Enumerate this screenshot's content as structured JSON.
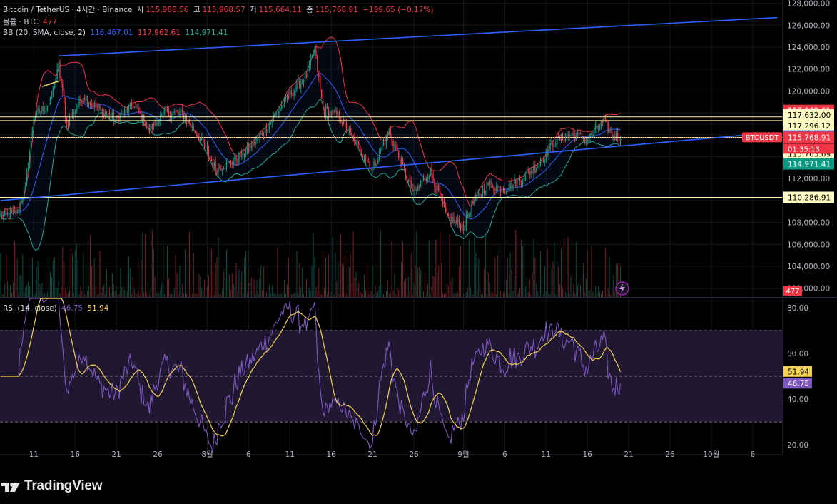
{
  "legend": {
    "symbol": "Bitcoin / TetherUS · 4시간 · Binance",
    "open_label": "시",
    "open": "115,968.56",
    "high_label": "고",
    "high": "115,968.57",
    "low_label": "저",
    "low": "115,664.11",
    "close_label": "종",
    "close": "115,768.91",
    "change": "−199.65 (−0.17%)",
    "volume_label": "볼륨 · BTC",
    "volume_value": "477",
    "bb_label": "BB (20, SMA, close, 2)",
    "bb_basis": "116,467.01",
    "bb_upper": "117,962.61",
    "bb_lower": "114,971.41",
    "rsi_label": "RSI (14, close)",
    "rsi_value": "46.75",
    "rsi_ma": "51.94"
  },
  "brand": "TradingView",
  "symbol_tag": "BTCUSDT",
  "countdown": "01:35:13",
  "colors": {
    "background": "#000000",
    "up": "#089981",
    "down": "#f23645",
    "bb_basis": "#2962ff",
    "bb_upper": "#f23645",
    "bb_lower": "#22ab94",
    "trendline": "#2962ff",
    "hline": "#fff59d",
    "rsi": "#7e57c2",
    "rsi_ma": "#f7d154",
    "rsi_band": "#1f1830"
  },
  "chart_data": [
    {
      "type": "candlestick",
      "name": "price",
      "x_tick_labels": [
        "11",
        "16",
        "21",
        "26",
        "8월",
        "6",
        "11",
        "16",
        "21",
        "26",
        "9월",
        "6",
        "11",
        "16",
        "21",
        "26",
        "10월",
        "6"
      ],
      "y_tick_labels": [
        "128,000.00",
        "126,000.00",
        "124,000.00",
        "122,000.00",
        "120,000.00",
        "118,000.00",
        "116,000.00",
        "114,000.00",
        "112,000.00",
        "110,000.00",
        "108,000.00",
        "106,000.00",
        "104,000.00",
        "102,000.00"
      ],
      "ylim": [
        101200,
        128300
      ],
      "x_range_days": [
        "2025-07-07",
        "2025-10-10"
      ],
      "anchors": [
        [
          "2025-07-07",
          108600
        ],
        [
          "2025-07-09",
          108900
        ],
        [
          "2025-07-10",
          111300
        ],
        [
          "2025-07-11",
          117600
        ],
        [
          "2025-07-13",
          119000
        ],
        [
          "2025-07-14",
          122300
        ],
        [
          "2025-07-15",
          117000
        ],
        [
          "2025-07-17",
          119600
        ],
        [
          "2025-07-19",
          118200
        ],
        [
          "2025-07-21",
          117400
        ],
        [
          "2025-07-23",
          118700
        ],
        [
          "2025-07-25",
          116500
        ],
        [
          "2025-07-27",
          118100
        ],
        [
          "2025-07-29",
          117900
        ],
        [
          "2025-07-31",
          115800
        ],
        [
          "2025-08-02",
          112900
        ],
        [
          "2025-08-04",
          113500
        ],
        [
          "2025-08-06",
          114700
        ],
        [
          "2025-08-08",
          116400
        ],
        [
          "2025-08-11",
          119700
        ],
        [
          "2025-08-13",
          121400
        ],
        [
          "2025-08-14",
          123700
        ],
        [
          "2025-08-15",
          118300
        ],
        [
          "2025-08-17",
          117700
        ],
        [
          "2025-08-19",
          115200
        ],
        [
          "2025-08-21",
          112900
        ],
        [
          "2025-08-23",
          116300
        ],
        [
          "2025-08-25",
          112300
        ],
        [
          "2025-08-26",
          110600
        ],
        [
          "2025-08-28",
          112700
        ],
        [
          "2025-08-30",
          108500
        ],
        [
          "2025-09-01",
          107600
        ],
        [
          "2025-09-02",
          109600
        ],
        [
          "2025-09-04",
          111500
        ],
        [
          "2025-09-06",
          111000
        ],
        [
          "2025-09-08",
          112000
        ],
        [
          "2025-09-10",
          113200
        ],
        [
          "2025-09-12",
          115400
        ],
        [
          "2025-09-14",
          116000
        ],
        [
          "2025-09-16",
          115600
        ],
        [
          "2025-09-17",
          116400
        ],
        [
          "2025-09-18",
          117200
        ],
        [
          "2025-09-19",
          115900
        ],
        [
          "2025-09-20",
          115768.91
        ]
      ],
      "bollinger": {
        "period": 20,
        "stddev": 2,
        "basis": 116467.01,
        "upper": 117962.61,
        "lower": 114971.41
      },
      "price_labels": [
        {
          "value": 117962.61,
          "text": "117,962.61",
          "color": "#f23645",
          "text_color": "#ffffff"
        },
        {
          "value": 117632.0,
          "text": "117,632.00",
          "color": "#fff9c4",
          "text_color": "#000000"
        },
        {
          "value": 117296.12,
          "text": "117,296.12",
          "color": "#fff9c4",
          "text_color": "#000000"
        },
        {
          "value": 116467.01,
          "text": "116,467.01",
          "color": "#2962ff",
          "text_color": "#ffffff"
        },
        {
          "value": 115768.91,
          "text": "115,768.91",
          "color": "#f23645",
          "text_color": "#ffffff"
        },
        {
          "value": 115763.69,
          "text": "115,763.69",
          "color": "#fff9c4",
          "text_color": "#000000"
        },
        {
          "value": 114971.41,
          "text": "114,971.41",
          "color": "#089981",
          "text_color": "#ffffff"
        },
        {
          "value": 110286.91,
          "text": "110,286.91",
          "color": "#fff9c4",
          "text_color": "#000000"
        }
      ],
      "horizontal_lines": [
        117632.0,
        117296.12,
        115763.69,
        110286.91
      ],
      "trendlines": [
        {
          "points": [
            [
              "2025-07-14",
              123200
            ],
            [
              "2025-10-09",
              126700
            ]
          ]
        },
        {
          "points": [
            [
              "2025-07-07",
              110000
            ],
            [
              "2025-10-05",
              115960
            ]
          ]
        }
      ],
      "volume": {
        "last": 477,
        "last_text": "477"
      }
    },
    {
      "type": "line",
      "name": "RSI (14, close)",
      "y_tick_labels": [
        "80.00",
        "60.00",
        "40.00",
        "20.00"
      ],
      "ylim": [
        16,
        84
      ],
      "bands": [
        30,
        50,
        70
      ],
      "last_rsi": 46.75,
      "last_ma": 51.94,
      "value_labels": [
        {
          "value": 51.94,
          "text": "51.94",
          "color": "#f7d154",
          "text_color": "#000000"
        },
        {
          "value": 46.75,
          "text": "46.75",
          "color": "#7e57c2",
          "text_color": "#ffffff"
        }
      ]
    }
  ]
}
